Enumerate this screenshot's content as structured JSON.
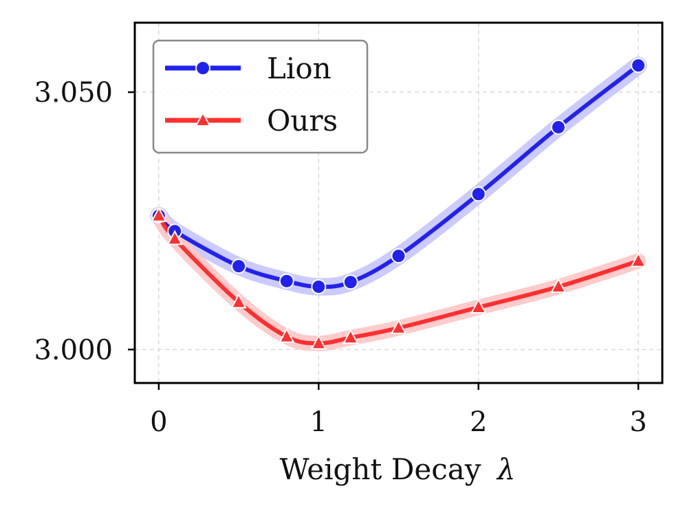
{
  "chart_data": {
    "type": "line",
    "title": "",
    "xlabel": "Weight Decay",
    "xlabel_symbol": "λ",
    "ylabel": "",
    "xlim": [
      -0.15,
      3.15
    ],
    "ylim": [
      2.9935,
      3.0635
    ],
    "x_ticks": [
      0,
      1,
      2,
      3
    ],
    "x_tick_labels": [
      "0",
      "1",
      "2",
      "3"
    ],
    "y_ticks": [
      3.0,
      3.05
    ],
    "y_tick_labels": [
      "3.000",
      "3.050"
    ],
    "grid": true,
    "legend_position": "upper-left",
    "series": [
      {
        "name": "Lion",
        "marker": "circle",
        "color": "#2222ee",
        "band_color": "#c8c8ff",
        "band_halfwidth": 0.0013,
        "x": [
          0,
          0.1,
          0.5,
          0.8,
          1.0,
          1.2,
          1.5,
          2.0,
          2.5,
          3.0
        ],
        "y": [
          3.026,
          3.023,
          3.0162,
          3.0133,
          3.0122,
          3.0131,
          3.0182,
          3.0302,
          3.0432,
          3.0552
        ]
      },
      {
        "name": "Ours",
        "marker": "triangle",
        "color": "#ff3030",
        "band_color": "#ffc8c8",
        "band_halfwidth": 0.0011,
        "x": [
          0,
          0.1,
          0.5,
          0.8,
          1.0,
          1.2,
          1.5,
          2.0,
          2.5,
          3.0
        ],
        "y": [
          3.026,
          3.0215,
          3.0092,
          3.0025,
          3.0012,
          3.0023,
          3.0042,
          3.0082,
          3.0122,
          3.0172
        ]
      }
    ]
  }
}
